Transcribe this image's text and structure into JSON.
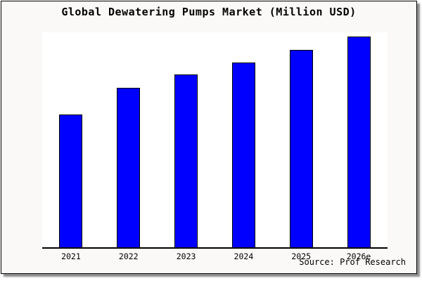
{
  "chart": {
    "title": "Global Dewatering Pumps Market (Million USD)",
    "source": "Source: Prof Research",
    "frame_bg": "#faf9f7",
    "plot_bg": "#ffffff",
    "axis_color": "#000000",
    "shadow_color": "#8f8f8f"
  },
  "chart_data": {
    "type": "bar",
    "title": "Global Dewatering Pumps Market (Million USD)",
    "categories": [
      "2021",
      "2022",
      "2023",
      "2024",
      "2025",
      "2026e"
    ],
    "values": [
      100,
      120,
      130,
      139,
      149,
      159
    ],
    "value_note": "y-axis has no tick labels or gridlines; values are relative bar heights normalized to 2021 = 100",
    "xlabel": "",
    "ylabel": "",
    "ylim": [
      0,
      162
    ],
    "grid": false,
    "legend": false,
    "bar_color": "#0000ff",
    "bar_border_color": "#000000",
    "annotation": "Source: Prof Research"
  }
}
